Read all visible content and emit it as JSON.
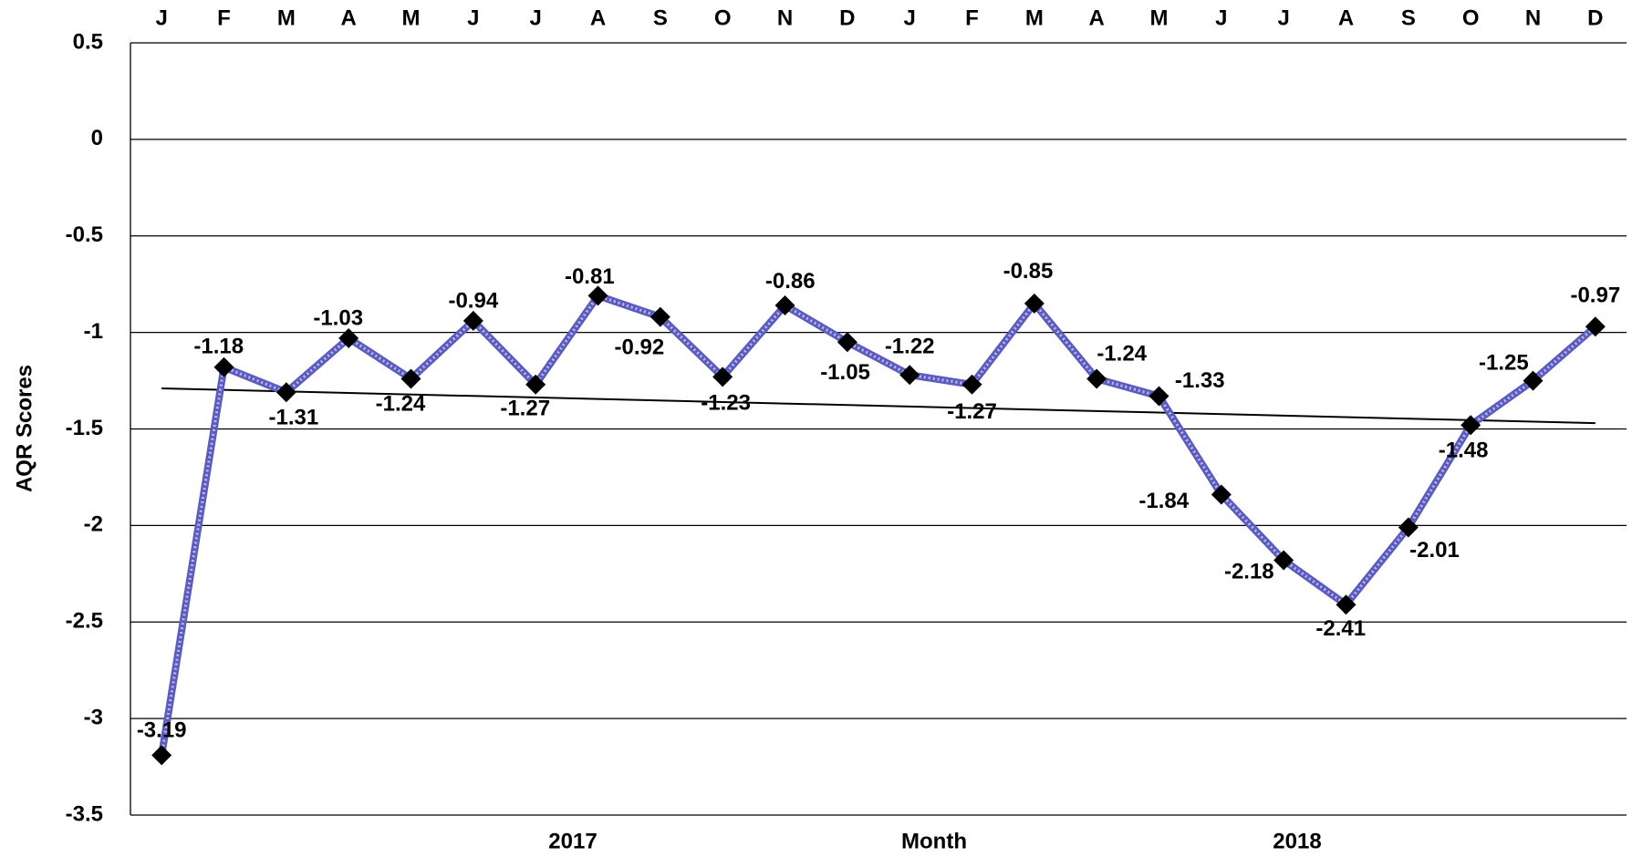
{
  "chart_data": {
    "type": "line",
    "categories": [
      "J",
      "F",
      "M",
      "A",
      "M",
      "J",
      "J",
      "A",
      "S",
      "O",
      "N",
      "D",
      "J",
      "F",
      "M",
      "A",
      "M",
      "J",
      "J",
      "A",
      "S",
      "O",
      "N",
      "D"
    ],
    "series": [
      {
        "color": "#5b5bc0",
        "values": [
          -3.19,
          -1.18,
          -1.31,
          -1.03,
          -1.24,
          -0.94,
          -1.27,
          -0.81,
          -0.92,
          -1.23,
          -0.86,
          -1.05,
          -1.22,
          -1.27,
          -0.85,
          -1.24,
          -1.33,
          -1.84,
          -2.18,
          -2.41,
          -2.01,
          -1.48,
          -1.25,
          -0.97
        ]
      }
    ],
    "trendline": {
      "color": "#000000",
      "values": [
        -1.29,
        -1.47
      ]
    },
    "x_group_labels": [
      "2017",
      "2018"
    ],
    "xlabel": "Month",
    "ylabel": "AQR Scores",
    "ylim": [
      -3.5,
      0.5
    ],
    "yticks": [
      0.5,
      0,
      -0.5,
      -1,
      -1.5,
      -2,
      -2.5,
      -3,
      -3.5
    ],
    "grid": true
  }
}
